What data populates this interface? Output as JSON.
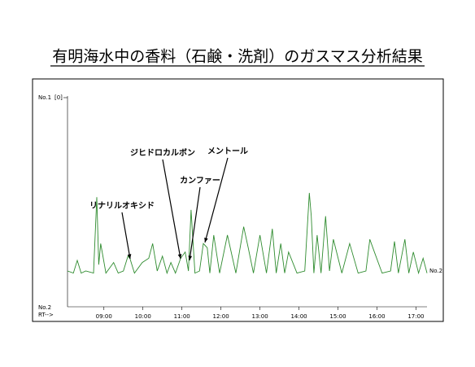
{
  "chart_data": {
    "type": "line",
    "title": "有明海水中の香料（石鹸・洗剤）のガスマス分析結果",
    "top_label": "No.1",
    "top_scale": "[0]",
    "bottom_label": "No.2",
    "x_axis_label": "RT-->",
    "trace_label": "No.2",
    "annotations": [
      "リナリルオキシド",
      "ジヒドロカルボン",
      "カンファー",
      "メントール"
    ],
    "xlim": [
      484,
      1037
    ],
    "ylim": [
      0,
      100
    ],
    "xticks": [
      {
        "value": 540,
        "label": "09:00"
      },
      {
        "value": 600,
        "label": "10:00"
      },
      {
        "value": 660,
        "label": "11:00"
      },
      {
        "value": 720,
        "label": "12:00"
      },
      {
        "value": 780,
        "label": "13:00"
      },
      {
        "value": 840,
        "label": "14:00"
      },
      {
        "value": 900,
        "label": "15:00"
      },
      {
        "value": 960,
        "label": "16:00"
      },
      {
        "value": 1020,
        "label": "17:00"
      }
    ],
    "x": [
      484,
      493,
      499,
      505,
      512,
      524,
      529,
      532,
      535,
      543,
      555,
      562,
      570,
      577,
      580,
      587,
      599,
      609,
      615,
      622,
      630,
      637,
      643,
      650,
      658,
      665,
      670,
      674,
      680,
      687,
      693,
      699,
      703,
      709,
      718,
      730,
      743,
      755,
      762,
      770,
      780,
      790,
      799,
      805,
      812,
      818,
      824,
      837,
      849,
      856,
      859,
      863,
      868,
      874,
      881,
      887,
      893,
      906,
      918,
      931,
      943,
      949,
      956,
      968,
      981,
      987,
      993,
      1003,
      1009,
      1016,
      1024,
      1031,
      1037
    ],
    "series": [
      {
        "color": "#2e8b2e",
        "values": [
          17,
          16,
          22,
          16,
          17,
          16,
          52,
          20,
          30,
          16,
          21,
          16,
          17,
          24,
          23,
          16,
          21,
          23,
          30,
          17,
          24,
          16,
          21,
          16,
          23,
          26,
          17,
          46,
          16,
          17,
          30,
          28,
          16,
          34,
          16,
          34,
          16,
          38,
          28,
          16,
          34,
          16,
          37,
          16,
          30,
          16,
          26,
          16,
          17,
          54,
          43,
          16,
          34,
          16,
          43,
          17,
          32,
          16,
          30,
          16,
          17,
          32,
          26,
          16,
          17,
          31,
          16,
          32,
          16,
          26,
          16,
          23,
          16
        ]
      }
    ]
  }
}
